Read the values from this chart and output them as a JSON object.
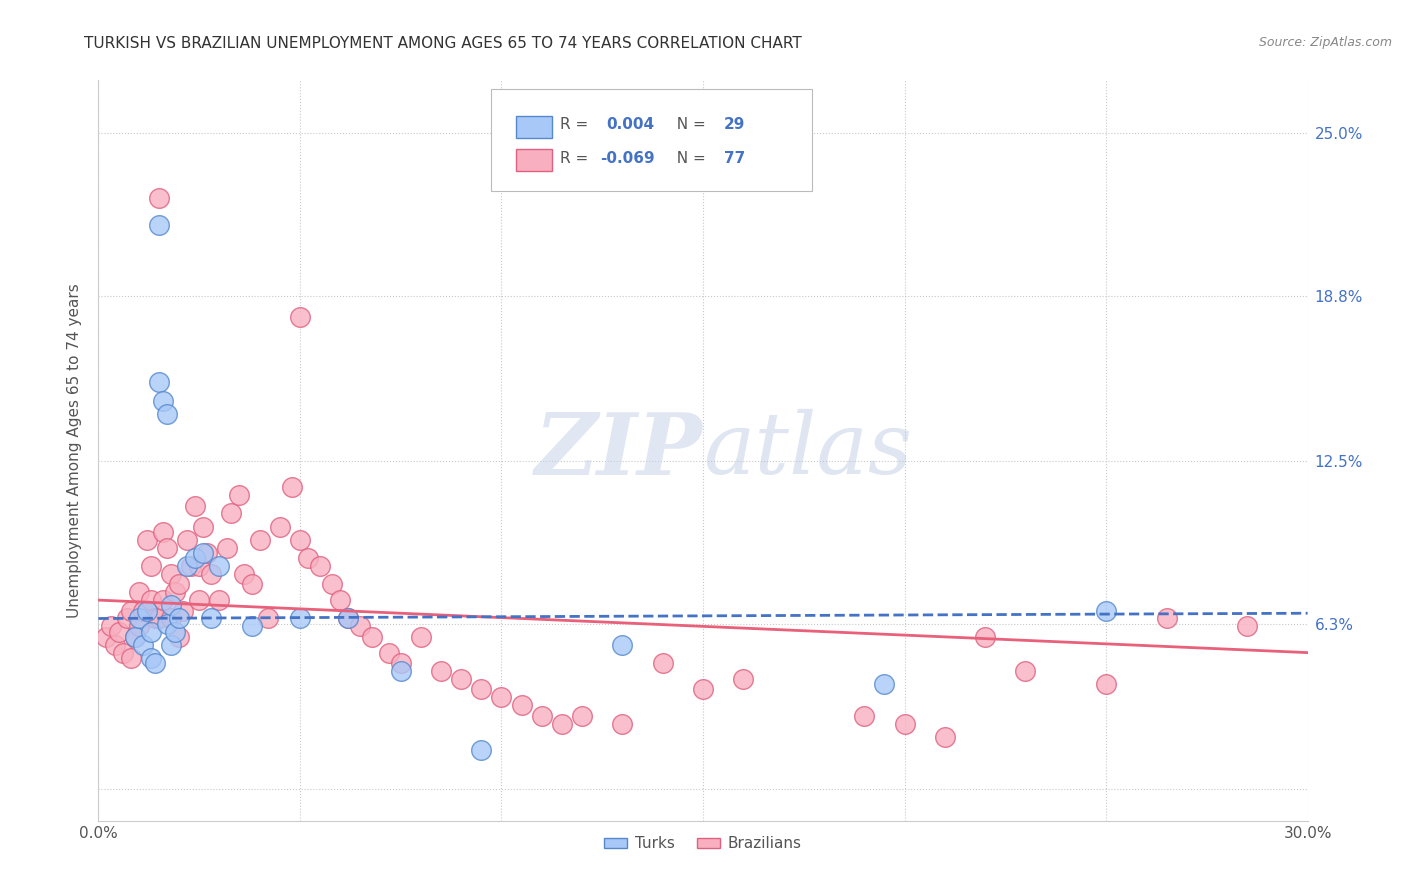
{
  "title": "TURKISH VS BRAZILIAN UNEMPLOYMENT AMONG AGES 65 TO 74 YEARS CORRELATION CHART",
  "source": "Source: ZipAtlas.com",
  "ylabel": "Unemployment Among Ages 65 to 74 years",
  "xlim": [
    0.0,
    0.3
  ],
  "ylim": [
    -0.012,
    0.27
  ],
  "ytick_positions": [
    0.0,
    0.063,
    0.125,
    0.188,
    0.25
  ],
  "ytick_labels": [
    "",
    "6.3%",
    "12.5%",
    "18.8%",
    "25.0%"
  ],
  "turks_color": "#A8C8F8",
  "turks_edge": "#5588CC",
  "brazilians_color": "#F8B0C0",
  "brazilians_edge": "#E06080",
  "trend_turks_color": "#4472C4",
  "trend_brazilians_color": "#E8607A",
  "watermark_zip": "ZIP",
  "watermark_atlas": "atlas",
  "background_color": "#FFFFFF",
  "turks_x": [
    0.009,
    0.01,
    0.011,
    0.012,
    0.013,
    0.013,
    0.014,
    0.015,
    0.015,
    0.016,
    0.017,
    0.017,
    0.018,
    0.018,
    0.019,
    0.02,
    0.022,
    0.024,
    0.026,
    0.028,
    0.03,
    0.038,
    0.05,
    0.062,
    0.075,
    0.095,
    0.13,
    0.195,
    0.25
  ],
  "turks_y": [
    0.058,
    0.065,
    0.055,
    0.068,
    0.06,
    0.05,
    0.048,
    0.215,
    0.155,
    0.148,
    0.143,
    0.063,
    0.07,
    0.055,
    0.06,
    0.065,
    0.085,
    0.088,
    0.09,
    0.065,
    0.085,
    0.062,
    0.065,
    0.065,
    0.045,
    0.015,
    0.055,
    0.04,
    0.068
  ],
  "braz_x": [
    0.002,
    0.003,
    0.004,
    0.005,
    0.006,
    0.007,
    0.008,
    0.008,
    0.009,
    0.01,
    0.01,
    0.011,
    0.012,
    0.013,
    0.013,
    0.014,
    0.015,
    0.015,
    0.016,
    0.016,
    0.017,
    0.018,
    0.018,
    0.019,
    0.02,
    0.02,
    0.021,
    0.022,
    0.023,
    0.024,
    0.025,
    0.025,
    0.026,
    0.027,
    0.028,
    0.03,
    0.032,
    0.033,
    0.035,
    0.036,
    0.038,
    0.04,
    0.042,
    0.045,
    0.048,
    0.05,
    0.052,
    0.055,
    0.058,
    0.06,
    0.062,
    0.065,
    0.068,
    0.072,
    0.075,
    0.08,
    0.085,
    0.09,
    0.095,
    0.1,
    0.105,
    0.11,
    0.115,
    0.12,
    0.13,
    0.14,
    0.15,
    0.16,
    0.19,
    0.2,
    0.21,
    0.22,
    0.23,
    0.25,
    0.265,
    0.285,
    0.05
  ],
  "braz_y": [
    0.058,
    0.062,
    0.055,
    0.06,
    0.052,
    0.065,
    0.068,
    0.05,
    0.058,
    0.062,
    0.075,
    0.068,
    0.095,
    0.072,
    0.085,
    0.065,
    0.225,
    0.065,
    0.098,
    0.072,
    0.092,
    0.082,
    0.065,
    0.075,
    0.058,
    0.078,
    0.068,
    0.095,
    0.085,
    0.108,
    0.085,
    0.072,
    0.1,
    0.09,
    0.082,
    0.072,
    0.092,
    0.105,
    0.112,
    0.082,
    0.078,
    0.095,
    0.065,
    0.1,
    0.115,
    0.095,
    0.088,
    0.085,
    0.078,
    0.072,
    0.065,
    0.062,
    0.058,
    0.052,
    0.048,
    0.058,
    0.045,
    0.042,
    0.038,
    0.035,
    0.032,
    0.028,
    0.025,
    0.028,
    0.025,
    0.048,
    0.038,
    0.042,
    0.028,
    0.025,
    0.02,
    0.058,
    0.045,
    0.04,
    0.065,
    0.062,
    0.18
  ],
  "braz_trend_x0": 0.0,
  "braz_trend_y0": 0.072,
  "braz_trend_x1": 0.3,
  "braz_trend_y1": 0.052,
  "turks_trend_x0": 0.0,
  "turks_trend_y0": 0.065,
  "turks_trend_x1": 0.3,
  "turks_trend_y1": 0.067
}
